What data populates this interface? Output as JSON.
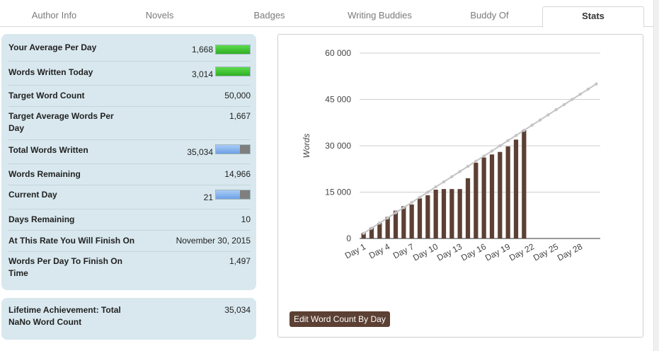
{
  "tabs": [
    {
      "label": "Author Info"
    },
    {
      "label": "Novels"
    },
    {
      "label": "Badges"
    },
    {
      "label": "Writing Buddies"
    },
    {
      "label": "Buddy Of"
    },
    {
      "label": "Stats"
    }
  ],
  "stats": {
    "avg_per_day": {
      "label": "Your Average Per Day",
      "value": "1,668",
      "bar_fraction": 1.0
    },
    "written_today": {
      "label": "Words Written Today",
      "value": "3,014",
      "bar_fraction": 1.0
    },
    "target_word_count": {
      "label": "Target Word Count",
      "value": "50,000"
    },
    "target_avg": {
      "label": "Target Average Words Per Day",
      "value": "1,667"
    },
    "total_written": {
      "label": "Total Words Written",
      "value": "35,034",
      "bar_fraction": 0.7
    },
    "words_remaining": {
      "label": "Words Remaining",
      "value": "14,966"
    },
    "current_day": {
      "label": "Current Day",
      "value": "21",
      "bar_fraction": 0.7
    },
    "days_remaining": {
      "label": "Days Remaining",
      "value": "10"
    },
    "finish_on": {
      "label": "At This Rate You Will Finish On",
      "value": "November 30, 2015"
    },
    "per_day_to_finish": {
      "label": "Words Per Day To Finish On Time",
      "value": "1,497"
    }
  },
  "lifetime": {
    "label": "Lifetime Achievement: Total NaNo Word Count",
    "value": "35,034"
  },
  "colors": {
    "bar": "#5c4033",
    "target_line": "#c4c4c4",
    "bar_green": "#3fc32f",
    "bar_blue": "#8bb6ef"
  },
  "chart_data": {
    "type": "bar",
    "ylabel": "Words",
    "ylim": [
      0,
      60000
    ],
    "yticks": [
      "0",
      "15 000",
      "30 000",
      "45 000",
      "60 000"
    ],
    "yticks_values": [
      0,
      15000,
      30000,
      45000,
      60000
    ],
    "xticks": [
      "Day 1",
      "Day 4",
      "Day 7",
      "Day 10",
      "Day 13",
      "Day 16",
      "Day 19",
      "Day 22",
      "Day 25",
      "Day 28"
    ],
    "days": 30,
    "series": [
      {
        "type": "bar",
        "values": [
          1800,
          3500,
          5000,
          7000,
          9000,
          10500,
          11000,
          13000,
          14000,
          15800,
          16000,
          16000,
          16000,
          19500,
          24500,
          26200,
          27200,
          28000,
          29800,
          32000,
          35034
        ]
      },
      {
        "type": "line",
        "values": [
          1667,
          3333,
          5000,
          6667,
          8333,
          10000,
          11667,
          13333,
          15000,
          16667,
          18333,
          20000,
          21667,
          23333,
          25000,
          26667,
          28333,
          30000,
          31667,
          33333,
          35000,
          36667,
          38333,
          40000,
          41667,
          43333,
          45000,
          46667,
          48333,
          50000
        ]
      }
    ]
  },
  "edit_button": "Edit Word Count By Day"
}
